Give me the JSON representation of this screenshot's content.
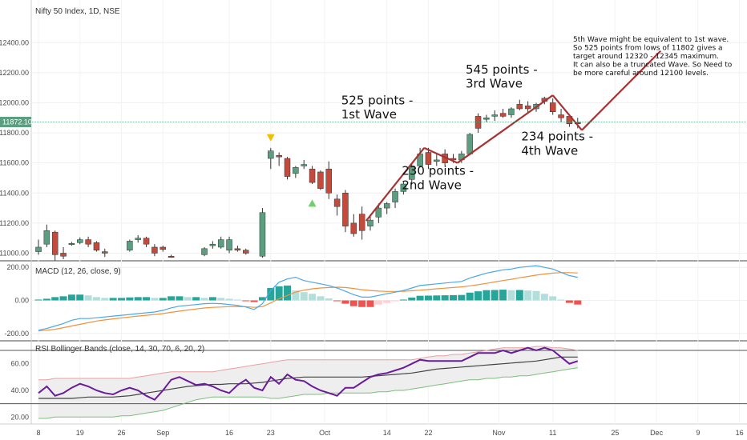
{
  "chart_data": {
    "type": "candlestick",
    "title": "Nifty 50 Index, 1D, NSE",
    "price": {
      "yticks": [
        "12400.00",
        "12200.00",
        "12000.00",
        "11800.00",
        "11600.00",
        "11400.00",
        "11200.00",
        "11000.00"
      ],
      "ylim": [
        10960,
        12545
      ],
      "last_price_label": "11872.10",
      "last_price": 11872.1,
      "candles": [
        {
          "i": 0,
          "o": 11010,
          "h": 11090,
          "l": 10990,
          "c": 11040
        },
        {
          "i": 1,
          "o": 11060,
          "h": 11190,
          "l": 11040,
          "c": 11150
        },
        {
          "i": 2,
          "o": 11140,
          "h": 11150,
          "l": 10950,
          "c": 10990
        },
        {
          "i": 3,
          "o": 11000,
          "h": 11040,
          "l": 10960,
          "c": 10980
        },
        {
          "i": 4,
          "o": 11060,
          "h": 11075,
          "l": 11050,
          "c": 11065
        },
        {
          "i": 5,
          "o": 11070,
          "h": 11105,
          "l": 11060,
          "c": 11090
        },
        {
          "i": 6,
          "o": 11090,
          "h": 11110,
          "l": 11040,
          "c": 11060
        },
        {
          "i": 7,
          "o": 11070,
          "h": 11080,
          "l": 11010,
          "c": 11020
        },
        {
          "i": 8,
          "o": 11010,
          "h": 11030,
          "l": 10975,
          "c": 11000
        },
        {
          "i": 11,
          "o": 11020,
          "h": 11090,
          "l": 11010,
          "c": 11080
        },
        {
          "i": 12,
          "o": 11090,
          "h": 11120,
          "l": 11070,
          "c": 11100
        },
        {
          "i": 13,
          "o": 11100,
          "h": 11110,
          "l": 11040,
          "c": 11060
        },
        {
          "i": 14,
          "o": 11040,
          "h": 11060,
          "l": 10980,
          "c": 11000
        },
        {
          "i": 15,
          "o": 11040,
          "h": 11050,
          "l": 11010,
          "c": 11025
        },
        {
          "i": 16,
          "o": 10980,
          "h": 10990,
          "l": 10970,
          "c": 10975
        },
        {
          "i": 20,
          "o": 10990,
          "h": 11040,
          "l": 10980,
          "c": 11030
        },
        {
          "i": 21,
          "o": 11050,
          "h": 11080,
          "l": 11030,
          "c": 11060
        },
        {
          "i": 22,
          "o": 11040,
          "h": 11110,
          "l": 11030,
          "c": 11090
        },
        {
          "i": 23,
          "o": 11020,
          "h": 11110,
          "l": 11000,
          "c": 11090
        },
        {
          "i": 24,
          "o": 11030,
          "h": 11050,
          "l": 11010,
          "c": 11020
        },
        {
          "i": 25,
          "o": 11020,
          "h": 11030,
          "l": 10990,
          "c": 11000
        },
        {
          "i": 27,
          "o": 10980,
          "h": 11300,
          "l": 10970,
          "c": 11270
        },
        {
          "i": 28,
          "o": 11630,
          "h": 11700,
          "l": 11560,
          "c": 11680
        },
        {
          "i": 29,
          "o": 11650,
          "h": 11670,
          "l": 11580,
          "c": 11640
        },
        {
          "i": 30,
          "o": 11630,
          "h": 11640,
          "l": 11490,
          "c": 11510
        },
        {
          "i": 31,
          "o": 11530,
          "h": 11580,
          "l": 11500,
          "c": 11570
        },
        {
          "i": 32,
          "o": 11580,
          "h": 11620,
          "l": 11560,
          "c": 11590
        },
        {
          "i": 33,
          "o": 11560,
          "h": 11580,
          "l": 11460,
          "c": 11470
        },
        {
          "i": 34,
          "o": 11540,
          "h": 11550,
          "l": 11420,
          "c": 11430
        },
        {
          "i": 35,
          "o": 11560,
          "h": 11610,
          "l": 11360,
          "c": 11400
        },
        {
          "i": 36,
          "o": 11360,
          "h": 11390,
          "l": 11250,
          "c": 11310
        },
        {
          "i": 37,
          "o": 11400,
          "h": 11420,
          "l": 11140,
          "c": 11180
        },
        {
          "i": 38,
          "o": 11200,
          "h": 11260,
          "l": 11110,
          "c": 11130
        },
        {
          "i": 39,
          "o": 11260,
          "h": 11310,
          "l": 11090,
          "c": 11150
        },
        {
          "i": 40,
          "o": 11180,
          "h": 11250,
          "l": 11150,
          "c": 11220
        },
        {
          "i": 41,
          "o": 11240,
          "h": 11330,
          "l": 11200,
          "c": 11300
        },
        {
          "i": 42,
          "o": 11300,
          "h": 11340,
          "l": 11260,
          "c": 11330
        },
        {
          "i": 43,
          "o": 11340,
          "h": 11430,
          "l": 11300,
          "c": 11410
        },
        {
          "i": 44,
          "o": 11410,
          "h": 11480,
          "l": 11390,
          "c": 11460
        },
        {
          "i": 45,
          "o": 11490,
          "h": 11600,
          "l": 11460,
          "c": 11580
        },
        {
          "i": 46,
          "o": 11580,
          "h": 11700,
          "l": 11570,
          "c": 11660
        },
        {
          "i": 47,
          "o": 11670,
          "h": 11700,
          "l": 11560,
          "c": 11590
        },
        {
          "i": 48,
          "o": 11610,
          "h": 11660,
          "l": 11580,
          "c": 11620
        },
        {
          "i": 49,
          "o": 11660,
          "h": 11690,
          "l": 11580,
          "c": 11600
        },
        {
          "i": 50,
          "o": 11630,
          "h": 11660,
          "l": 11600,
          "c": 11620
        },
        {
          "i": 51,
          "o": 11620,
          "h": 11680,
          "l": 11600,
          "c": 11660
        },
        {
          "i": 52,
          "o": 11660,
          "h": 11800,
          "l": 11650,
          "c": 11790
        },
        {
          "i": 53,
          "o": 11910,
          "h": 11930,
          "l": 11800,
          "c": 11830
        },
        {
          "i": 54,
          "o": 11890,
          "h": 11920,
          "l": 11870,
          "c": 11900
        },
        {
          "i": 55,
          "o": 11910,
          "h": 11950,
          "l": 11880,
          "c": 11920
        },
        {
          "i": 56,
          "o": 11930,
          "h": 11960,
          "l": 11900,
          "c": 11910
        },
        {
          "i": 57,
          "o": 11920,
          "h": 11970,
          "l": 11900,
          "c": 11960
        },
        {
          "i": 58,
          "o": 11990,
          "h": 12020,
          "l": 11950,
          "c": 11960
        },
        {
          "i": 59,
          "o": 11980,
          "h": 12010,
          "l": 11930,
          "c": 11960
        },
        {
          "i": 60,
          "o": 11960,
          "h": 12000,
          "l": 11940,
          "c": 11990
        },
        {
          "i": 61,
          "o": 12030,
          "h": 12040,
          "l": 11990,
          "c": 12010
        },
        {
          "i": 62,
          "o": 12000,
          "h": 12030,
          "l": 11920,
          "c": 11940
        },
        {
          "i": 63,
          "o": 11920,
          "h": 11960,
          "l": 11870,
          "c": 11900
        },
        {
          "i": 64,
          "o": 11910,
          "h": 11920,
          "l": 11840,
          "c": 11860
        },
        {
          "i": 65,
          "o": 11870,
          "h": 11900,
          "l": 11830,
          "c": 11860
        }
      ],
      "wave_lines": [
        {
          "from": {
            "i": 39.5,
            "v": 11215
          },
          "to": {
            "i": 46.5,
            "v": 11700
          }
        },
        {
          "from": {
            "i": 46.5,
            "v": 11700
          },
          "to": {
            "i": 50.5,
            "v": 11600
          }
        },
        {
          "from": {
            "i": 50.5,
            "v": 11600
          },
          "to": {
            "i": 62,
            "v": 12050
          }
        },
        {
          "from": {
            "i": 62,
            "v": 12050
          },
          "to": {
            "i": 65.5,
            "v": 11818
          }
        },
        {
          "from": {
            "i": 65.5,
            "v": 11818
          },
          "to": {
            "i": 75,
            "v": 12345
          }
        }
      ],
      "signals": [
        {
          "kind": "sell",
          "i": 28,
          "v": 11770,
          "color": "#f0c000"
        },
        {
          "kind": "buy",
          "i": 33,
          "v": 11330,
          "color": "#6ad46a"
        }
      ],
      "annotations": [
        {
          "text": "525 points -",
          "i": 36.5,
          "v": 11990
        },
        {
          "text": "1st Wave",
          "i": 36.5,
          "v": 11895
        },
        {
          "text": "545 points -",
          "i": 51.5,
          "v": 12195
        },
        {
          "text": "3rd Wave",
          "i": 51.5,
          "v": 12100
        },
        {
          "text": "230 points -",
          "i": 43.8,
          "v": 11520
        },
        {
          "text": "2nd Wave",
          "i": 43.8,
          "v": 11425
        },
        {
          "text": "234 points -",
          "i": 58.2,
          "v": 11750
        },
        {
          "text": "4th Wave",
          "i": 58.2,
          "v": 11655
        }
      ],
      "note_lines": [
        "5th Wave might be equivalent to 1st wave.",
        "So 525 points from lows of 11802 gives a",
        "target around 12320 - 12345 maximum.",
        "It can also be a truncated Wave. So Need to",
        "be more careful around 12100 levels."
      ]
    },
    "macd": {
      "title": "MACD (12, 26, close, 9)",
      "yticks": [
        "200.00",
        "0.00",
        "-200.00"
      ],
      "ylim": [
        -230,
        230
      ],
      "macd_line": [
        -180,
        -170,
        -155,
        -140,
        -120,
        -110,
        -110,
        -105,
        -100,
        -95,
        -90,
        -85,
        -80,
        -75,
        -70,
        -60,
        -45,
        -35,
        -30,
        -25,
        -20,
        -18,
        -20,
        -25,
        -30,
        -40,
        -55,
        -20,
        60,
        110,
        130,
        140,
        120,
        110,
        100,
        90,
        75,
        55,
        35,
        20,
        20,
        30,
        40,
        50,
        60,
        75,
        90,
        95,
        100,
        105,
        110,
        115,
        135,
        150,
        165,
        175,
        185,
        190,
        200,
        205,
        210,
        200,
        190,
        170,
        150,
        140
      ],
      "signal_line": [
        -185,
        -180,
        -175,
        -165,
        -155,
        -145,
        -135,
        -125,
        -118,
        -112,
        -106,
        -100,
        -95,
        -90,
        -85,
        -80,
        -72,
        -65,
        -58,
        -52,
        -46,
        -42,
        -40,
        -38,
        -37,
        -38,
        -42,
        -38,
        -15,
        10,
        30,
        50,
        62,
        70,
        75,
        78,
        80,
        78,
        72,
        65,
        60,
        56,
        54,
        54,
        55,
        58,
        62,
        66,
        70,
        74,
        78,
        82,
        88,
        95,
        103,
        112,
        120,
        128,
        137,
        145,
        153,
        160,
        165,
        168,
        168,
        166
      ],
      "histogram": [
        5,
        10,
        20,
        25,
        35,
        35,
        30,
        20,
        15,
        15,
        15,
        18,
        20,
        20,
        15,
        15,
        25,
        25,
        20,
        20,
        15,
        20,
        15,
        10,
        5,
        -5,
        -10,
        20,
        75,
        85,
        90,
        60,
        50,
        40,
        25,
        12,
        -5,
        -20,
        -35,
        -40,
        -40,
        -25,
        -15,
        -5,
        5,
        17,
        28,
        29,
        30,
        31,
        32,
        33,
        47,
        55,
        62,
        63,
        65,
        62,
        63,
        60,
        57,
        40,
        25,
        5,
        -15,
        -25
      ]
    },
    "rsi_bb": {
      "title": "RSI Bollinger Bands (close, 14, 30, 70, 6, 20, 2)",
      "yticks": [
        "60.00",
        "40.00",
        "20.00"
      ],
      "ylim": [
        16,
        76
      ],
      "levels": [
        70,
        30
      ],
      "rsi": [
        38,
        43,
        36,
        38,
        42,
        45,
        43,
        40,
        38,
        37,
        40,
        42,
        40,
        36,
        33,
        40,
        48,
        50,
        47,
        44,
        45,
        43,
        40,
        38,
        44,
        48,
        42,
        40,
        50,
        45,
        52,
        48,
        47,
        43,
        40,
        38,
        36,
        42,
        42,
        46,
        50,
        52,
        53,
        55,
        57,
        60,
        63,
        62,
        62,
        62,
        62,
        62,
        65,
        68,
        68,
        68,
        70,
        68,
        70,
        72,
        70,
        72,
        70,
        65,
        60,
        62
      ],
      "basis": [
        34,
        34,
        34,
        34,
        34,
        34.5,
        35,
        35,
        35,
        35,
        35.5,
        36,
        37,
        38,
        39,
        40,
        41,
        42,
        43,
        43.5,
        44,
        44.5,
        44.5,
        45,
        45,
        45,
        45.5,
        46,
        47,
        48,
        49,
        49.5,
        50,
        50,
        50,
        50,
        50,
        50,
        50,
        50,
        50.5,
        51,
        51.5,
        52,
        52.5,
        53,
        54,
        55,
        56,
        56.5,
        57,
        57.5,
        58,
        58.5,
        59,
        59.5,
        60,
        60.5,
        61,
        61.5,
        62,
        63,
        64,
        65,
        65,
        65
      ],
      "upper": [
        48,
        48,
        49,
        49,
        49,
        49,
        49,
        49,
        49,
        49,
        49,
        49,
        50,
        51,
        52,
        53,
        54,
        54,
        54,
        54,
        54,
        54,
        55,
        56,
        57,
        58,
        59,
        60,
        61,
        62,
        63,
        63,
        63,
        63,
        63,
        63,
        63,
        63,
        63,
        63,
        63,
        63,
        63,
        63,
        63,
        63,
        64,
        65,
        66,
        66,
        67,
        67,
        68,
        69,
        70,
        71,
        72,
        72,
        72,
        72,
        73,
        73,
        72,
        72,
        71,
        70
      ],
      "lower": [
        19,
        19,
        20,
        20,
        20,
        20,
        20,
        20,
        20,
        20,
        21,
        21,
        22,
        23,
        24,
        25,
        27,
        29,
        31,
        33,
        34,
        35,
        35,
        35,
        35,
        35,
        35,
        35,
        34,
        34,
        35,
        36,
        37,
        37,
        37,
        38,
        38,
        38,
        38,
        38,
        38,
        39,
        39,
        40,
        40,
        41,
        42,
        43,
        44,
        45,
        46,
        47,
        48,
        48,
        49,
        49,
        50,
        50,
        51,
        51,
        52,
        53,
        54,
        55,
        56,
        57
      ]
    },
    "x_axis": {
      "labels": [
        {
          "text": "8",
          "i": 0
        },
        {
          "text": "19",
          "i": 5
        },
        {
          "text": "26",
          "i": 10
        },
        {
          "text": "Sep",
          "i": 15
        },
        {
          "text": "16",
          "i": 23
        },
        {
          "text": "23",
          "i": 28
        },
        {
          "text": "Oct",
          "i": 34.5
        },
        {
          "text": "14",
          "i": 42
        },
        {
          "text": "22",
          "i": 47
        },
        {
          "text": "Nov",
          "i": 55.5
        },
        {
          "text": "11",
          "i": 62
        },
        {
          "text": "25",
          "i": 69.5
        },
        {
          "text": "Dec",
          "i": 74.5
        },
        {
          "text": "9",
          "i": 79.5
        },
        {
          "text": "16",
          "i": 84.5
        }
      ]
    },
    "colors": {
      "up": "#5b9e80",
      "down": "#c44a3c",
      "wave": "#a83232",
      "macd": "#4aa8e8",
      "signal": "#f0923c",
      "hist_up_strong": "#26a69a",
      "hist_up_weak": "#b2dfdb",
      "hist_down_strong": "#ef5350",
      "hist_down_weak": "#ffcdd2",
      "rsi": "#6a1b9a",
      "basis": "#424242",
      "upper": "#e8a0a0",
      "lower": "#7bbf7b",
      "last_price_bg": "#5b9e80"
    }
  }
}
